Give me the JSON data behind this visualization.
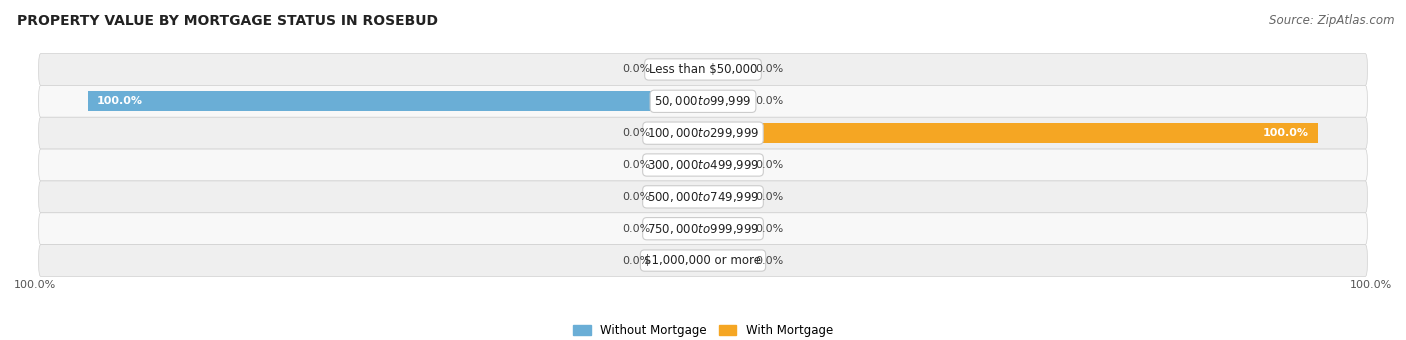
{
  "title": "PROPERTY VALUE BY MORTGAGE STATUS IN ROSEBUD",
  "source": "Source: ZipAtlas.com",
  "categories": [
    "Less than $50,000",
    "$50,000 to $99,999",
    "$100,000 to $299,999",
    "$300,000 to $499,999",
    "$500,000 to $749,999",
    "$750,000 to $999,999",
    "$1,000,000 or more"
  ],
  "without_mortgage": [
    0.0,
    100.0,
    0.0,
    0.0,
    0.0,
    0.0,
    0.0
  ],
  "with_mortgage": [
    0.0,
    0.0,
    100.0,
    0.0,
    0.0,
    0.0,
    0.0
  ],
  "without_mortgage_color": "#6aaed6",
  "with_mortgage_color": "#f5a623",
  "without_mortgage_light": "#adc8e8",
  "with_mortgage_light": "#f5d4a8",
  "row_bg_even": "#efefef",
  "row_bg_odd": "#f8f8f8",
  "title_fontsize": 10,
  "source_fontsize": 8.5,
  "label_fontsize": 8,
  "cat_fontsize": 8.5,
  "max_val": 100,
  "stub_val": 7,
  "figsize": [
    14.06,
    3.4
  ]
}
